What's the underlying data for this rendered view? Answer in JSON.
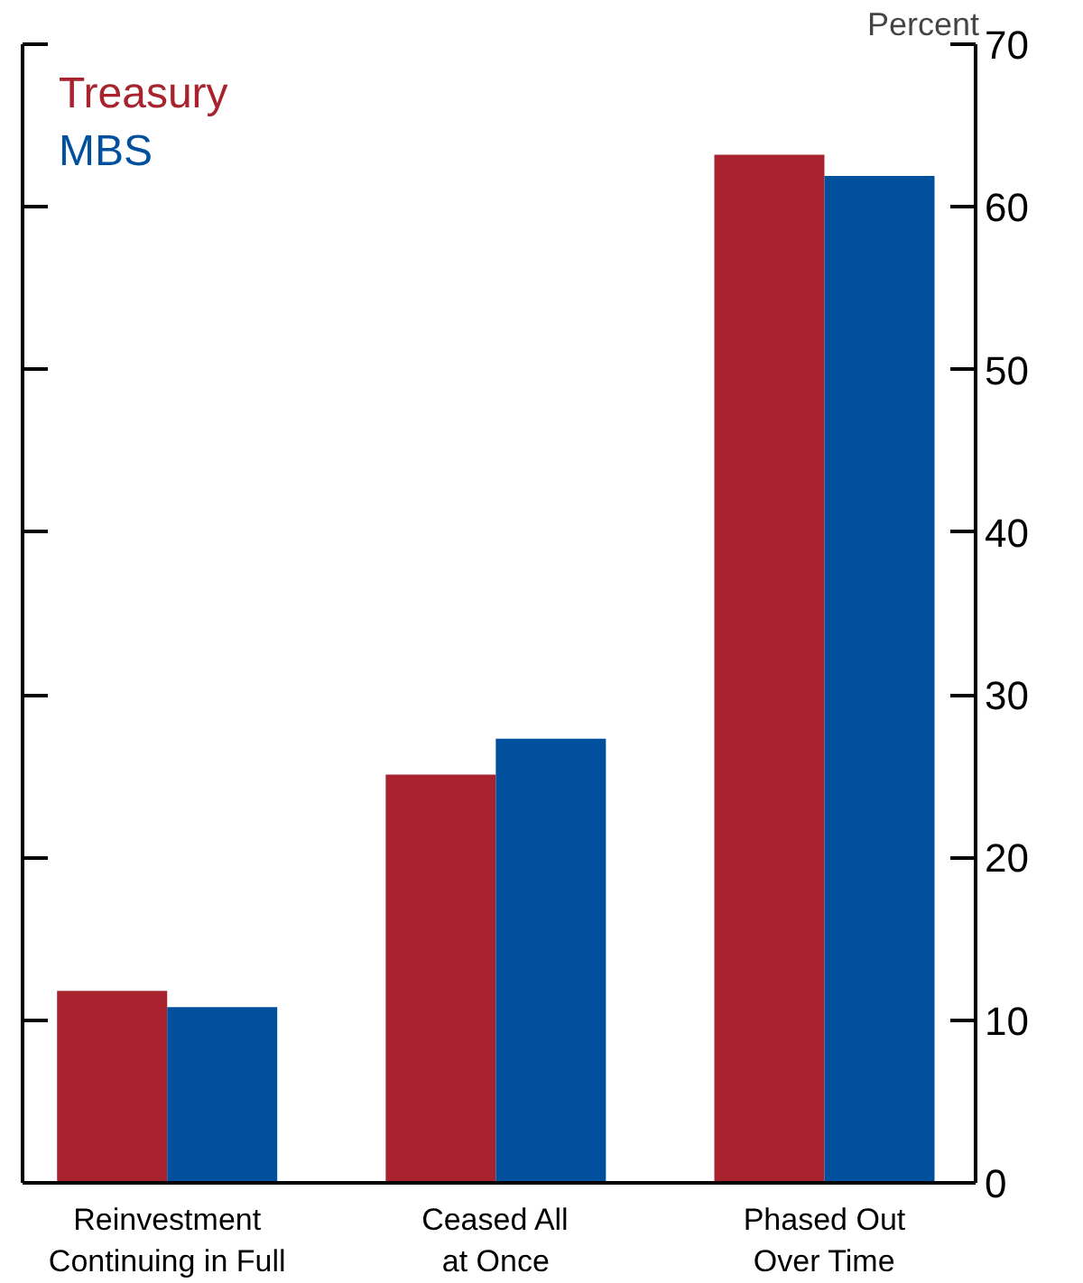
{
  "chart_data": {
    "type": "bar",
    "ylabel": "Percent",
    "categories": [
      "Reinvestment\nContinuing in Full",
      "Ceased All\nat Once",
      "Phased Out\nOver Time"
    ],
    "series": [
      {
        "name": "Treasury",
        "color": "#a8232d",
        "values": [
          11.8,
          25.1,
          63.2
        ]
      },
      {
        "name": "MBS",
        "color": "#00509e",
        "values": [
          10.8,
          27.3,
          61.9
        ]
      }
    ],
    "ylim": [
      0,
      70
    ],
    "yticks": [
      0,
      10,
      20,
      30,
      40,
      50,
      60,
      70
    ],
    "grid": false,
    "legend": "top left"
  }
}
